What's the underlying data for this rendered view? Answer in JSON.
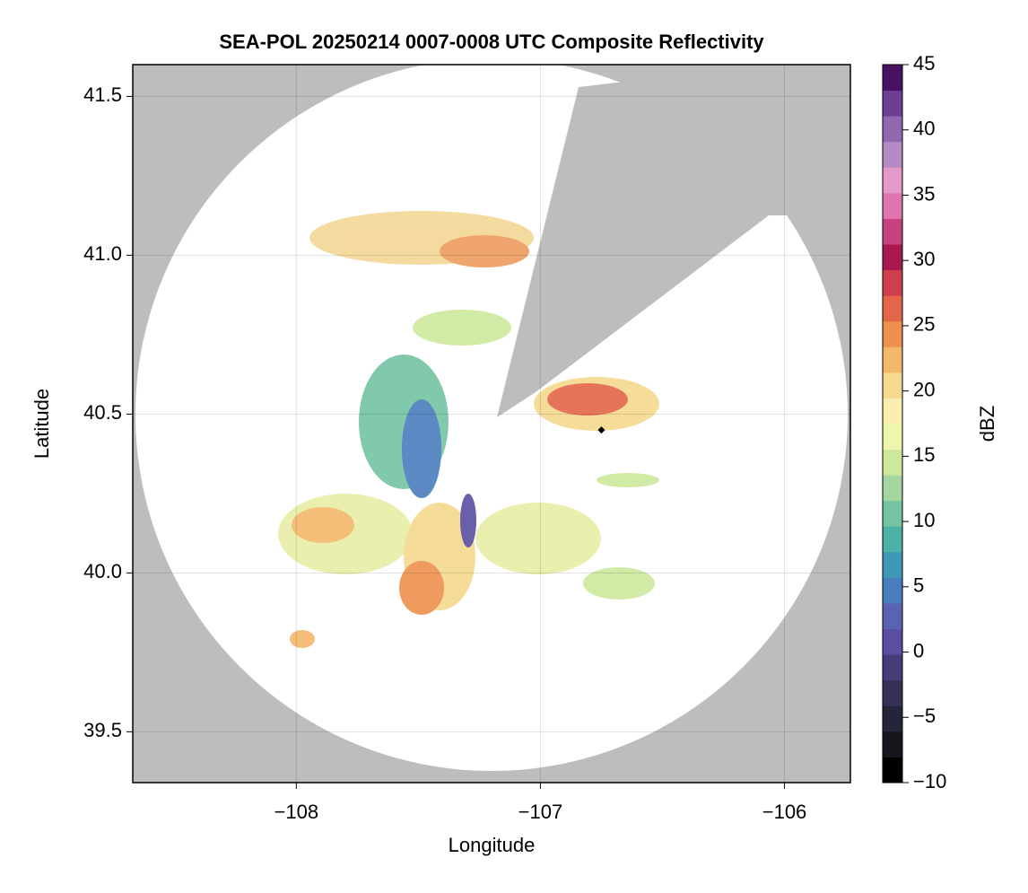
{
  "chart_data": {
    "type": "radar-map",
    "title": "SEA-POL 20250214 0007-0008 UTC Composite Reflectivity",
    "x_label": "Longitude",
    "y_label": "Latitude",
    "xlim": [
      -108.67,
      -105.73
    ],
    "xticks": [
      {
        "value": -108,
        "label": "−108"
      },
      {
        "value": -107,
        "label": "−107"
      },
      {
        "value": -106,
        "label": "−106"
      }
    ],
    "ylim": [
      39.34,
      41.6
    ],
    "yticks": [
      39.5,
      {
        "value": 40.0,
        "label": "40.0"
      },
      40.5,
      {
        "value": 41.0,
        "label": "41.0"
      },
      41.5
    ],
    "grid": true,
    "points": {
      "x": [
        -106.75
      ],
      "y": [
        40.45
      ],
      "color": "#000000"
    },
    "colorbar": {
      "label": "dBZ",
      "lim": [
        -10,
        45
      ],
      "ticks": [
        {
          "value": -10,
          "label": "−10"
        },
        {
          "value": -5,
          "label": "−5"
        },
        0,
        5,
        10,
        15,
        20,
        25,
        30,
        35,
        40,
        45
      ],
      "colors": [
        "#000000",
        "#16161f",
        "#25253a",
        "#343056",
        "#463c7a",
        "#5a4ea2",
        "#5a63b3",
        "#4a7dbd",
        "#3f99b6",
        "#4cb1a6",
        "#74c4a2",
        "#a4d69f",
        "#cde89c",
        "#eef6ab",
        "#f8eeb0",
        "#f5d98d",
        "#f3b86a",
        "#ee904e",
        "#e3654a",
        "#cf3e4b",
        "#a8194f",
        "#c8417f",
        "#df76b0",
        "#e49ac8",
        "#b48bc4",
        "#9168b0",
        "#6c3f95",
        "#471262"
      ]
    }
  }
}
